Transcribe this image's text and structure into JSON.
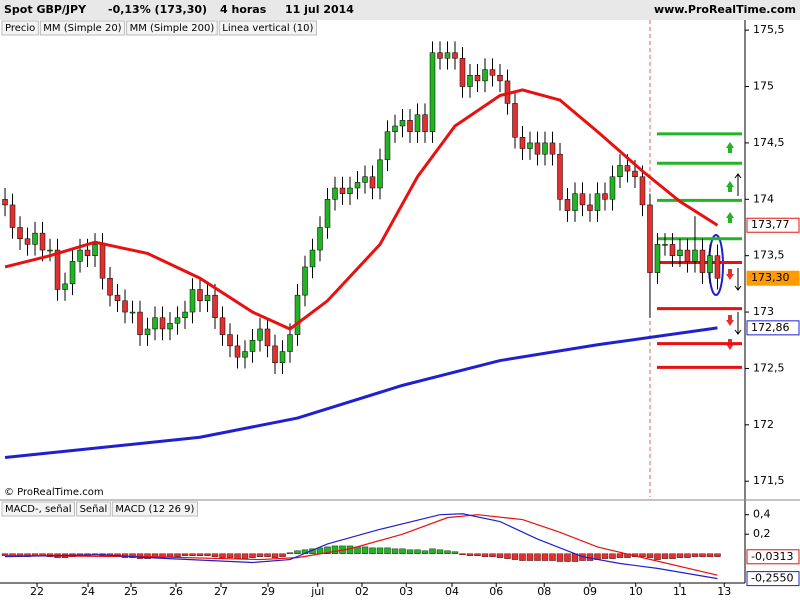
{
  "chart_data": [
    {
      "type": "candlestick",
      "title": "Spot GBP/JPY",
      "change": "-0,13% (173,30)",
      "timeframe": "4 horas",
      "date": "11 jul 2014",
      "source": "www.ProRealTime.com",
      "copyright": "© ProRealTime.com",
      "candles": {
        "name": "Precio",
        "up_color": "#22b422",
        "down_color": "#e03030",
        "open": [
          174.0,
          173.95,
          173.75,
          173.65,
          173.6,
          173.7,
          173.55,
          173.55,
          173.2,
          173.25,
          173.45,
          173.55,
          173.5,
          173.6,
          173.3,
          173.15,
          173.1,
          173.0,
          173.0,
          172.8,
          172.85,
          172.95,
          172.85,
          172.9,
          172.95,
          173.0,
          173.2,
          173.1,
          173.15,
          172.95,
          172.8,
          172.7,
          172.6,
          172.65,
          172.75,
          172.85,
          172.7,
          172.55,
          172.65,
          172.8,
          173.15,
          173.4,
          173.55,
          173.75,
          174.0,
          174.1,
          174.05,
          174.1,
          174.15,
          174.2,
          174.1,
          174.35,
          174.6,
          174.65,
          174.7,
          174.6,
          174.75,
          174.6,
          175.3,
          175.25,
          175.3,
          175.25,
          175.0,
          175.1,
          175.05,
          175.15,
          175.1,
          175.05,
          174.85,
          174.55,
          174.45,
          174.5,
          174.4,
          174.5,
          174.4,
          174.0,
          173.9,
          174.05,
          173.95,
          173.9,
          174.05,
          174.0,
          174.2,
          174.3,
          174.25,
          174.2,
          173.95,
          173.35,
          173.6,
          173.6,
          173.5,
          173.55,
          173.45,
          173.55,
          173.35,
          173.5
        ],
        "high": [
          174.1,
          174.05,
          173.85,
          173.75,
          173.8,
          173.8,
          173.65,
          173.65,
          173.35,
          173.55,
          173.65,
          173.65,
          173.7,
          173.7,
          173.4,
          173.25,
          173.2,
          173.1,
          173.1,
          172.95,
          173.05,
          173.05,
          173.0,
          173.05,
          173.1,
          173.3,
          173.3,
          173.25,
          173.25,
          173.05,
          172.9,
          172.8,
          172.75,
          172.85,
          172.95,
          172.95,
          172.8,
          172.75,
          172.9,
          173.25,
          173.5,
          173.65,
          173.85,
          174.1,
          174.2,
          174.2,
          174.2,
          174.25,
          174.3,
          174.3,
          174.45,
          174.7,
          174.75,
          174.8,
          174.8,
          174.85,
          174.85,
          175.4,
          175.4,
          175.4,
          175.4,
          175.35,
          175.2,
          175.2,
          175.25,
          175.25,
          175.2,
          175.15,
          174.95,
          174.65,
          174.6,
          174.6,
          174.6,
          174.6,
          174.5,
          174.1,
          174.15,
          174.15,
          174.05,
          174.15,
          174.15,
          174.3,
          174.4,
          174.4,
          174.35,
          174.3,
          174.05,
          173.7,
          173.7,
          173.7,
          173.65,
          173.65,
          173.85,
          173.65,
          173.6,
          173.6
        ],
        "low": [
          173.85,
          173.65,
          173.55,
          173.5,
          173.5,
          173.45,
          173.45,
          173.1,
          173.1,
          173.15,
          173.35,
          173.4,
          173.4,
          173.2,
          173.05,
          173.0,
          172.9,
          172.9,
          172.7,
          172.7,
          172.75,
          172.75,
          172.75,
          172.8,
          172.85,
          172.9,
          173.0,
          173.0,
          172.85,
          172.7,
          172.6,
          172.5,
          172.5,
          172.55,
          172.65,
          172.6,
          172.45,
          172.45,
          172.55,
          172.7,
          173.05,
          173.3,
          173.45,
          173.65,
          173.9,
          173.95,
          173.95,
          174.0,
          174.05,
          174.0,
          174.0,
          174.25,
          174.5,
          174.55,
          174.5,
          174.5,
          174.5,
          174.5,
          175.15,
          175.15,
          175.15,
          174.9,
          174.9,
          174.95,
          174.95,
          175.0,
          174.95,
          174.75,
          174.45,
          174.35,
          174.35,
          174.3,
          174.3,
          174.3,
          173.9,
          173.8,
          173.8,
          173.85,
          173.8,
          173.8,
          173.9,
          173.9,
          174.1,
          174.15,
          174.1,
          173.85,
          172.95,
          173.25,
          173.5,
          173.4,
          173.4,
          173.35,
          173.35,
          173.25,
          173.25,
          173.2
        ],
        "close": [
          173.95,
          173.75,
          173.65,
          173.6,
          173.7,
          173.55,
          173.55,
          173.2,
          173.25,
          173.45,
          173.55,
          173.5,
          173.6,
          173.3,
          173.15,
          173.1,
          173.0,
          173.0,
          172.8,
          172.85,
          172.95,
          172.85,
          172.9,
          172.95,
          173.0,
          173.2,
          173.1,
          173.15,
          172.95,
          172.8,
          172.7,
          172.6,
          172.65,
          172.75,
          172.85,
          172.7,
          172.55,
          172.65,
          172.8,
          173.15,
          173.4,
          173.55,
          173.75,
          174.0,
          174.1,
          174.05,
          174.1,
          174.15,
          174.2,
          174.1,
          174.35,
          174.6,
          174.65,
          174.7,
          174.6,
          174.75,
          174.6,
          175.3,
          175.25,
          175.3,
          175.25,
          175.0,
          175.1,
          175.05,
          175.15,
          175.1,
          175.05,
          174.85,
          174.55,
          174.45,
          174.5,
          174.4,
          174.5,
          174.4,
          174.0,
          173.9,
          174.05,
          173.95,
          173.9,
          174.05,
          174.0,
          174.2,
          174.3,
          174.25,
          174.2,
          173.95,
          173.35,
          173.6,
          173.6,
          173.5,
          173.55,
          173.45,
          173.55,
          173.35,
          173.5,
          173.3
        ]
      },
      "series": [
        {
          "name": "MM (Simple 20)",
          "color": "#e81010",
          "x": [
            0,
            6,
            12,
            19,
            26,
            33,
            38,
            43,
            50,
            55,
            60,
            66,
            69,
            74,
            79,
            85,
            90,
            95
          ],
          "values": [
            173.4,
            173.5,
            173.62,
            173.52,
            173.3,
            173.0,
            172.85,
            173.1,
            173.6,
            174.2,
            174.65,
            174.92,
            174.97,
            174.88,
            174.6,
            174.25,
            173.98,
            173.77
          ]
        },
        {
          "name": "MM (Simple 200)",
          "color": "#2020d0",
          "x": [
            0,
            26,
            39,
            53,
            66,
            79,
            95
          ],
          "values": [
            171.71,
            171.89,
            172.06,
            172.35,
            172.57,
            172.71,
            172.86
          ]
        }
      ],
      "vertical_line": {
        "name": "Linea vertical (10)",
        "x": 86,
        "color": "#e06060"
      },
      "green_levels": [
        174.58,
        174.32,
        173.99,
        173.65
      ],
      "red_levels": [
        173.44,
        173.03,
        172.72,
        172.51
      ],
      "last_labels": [
        {
          "value": 173.77,
          "label": "173,77",
          "color": "#e81010"
        },
        {
          "value": 173.3,
          "label": "173,30",
          "color": "#ff9a00"
        },
        {
          "value": 172.86,
          "label": "172,86",
          "color": "#2020d0"
        }
      ],
      "xlim": [
        -0.67,
        98.67
      ],
      "ylim": [
        171.36,
        175.59
      ],
      "yticks": [
        {
          "value": 175.5,
          "label": "175,5"
        },
        175,
        {
          "value": 174.5,
          "label": "174,5"
        },
        174,
        {
          "value": 173.5,
          "label": "173,5"
        },
        173,
        {
          "value": 172.5,
          "label": "172,5"
        },
        172,
        {
          "value": 171.5,
          "label": "171,5"
        }
      ],
      "xticks": [
        {
          "value": 4.27,
          "label": "22"
        },
        {
          "value": 11.07,
          "label": "24"
        },
        {
          "value": 16.8,
          "label": "25"
        },
        {
          "value": 22.8,
          "label": "26"
        },
        {
          "value": 28.8,
          "label": "27"
        },
        {
          "value": 35.07,
          "label": "29"
        },
        {
          "value": 41.7,
          "label": "jul"
        },
        {
          "value": 47.6,
          "label": "02"
        },
        {
          "value": 53.5,
          "label": "03"
        },
        {
          "value": 59.6,
          "label": "04"
        },
        {
          "value": 65.5,
          "label": "06"
        },
        {
          "value": 71.9,
          "label": "08"
        },
        {
          "value": 78,
          "label": "09"
        },
        {
          "value": 84.1,
          "label": "10"
        },
        {
          "value": 90,
          "label": "11"
        },
        {
          "value": 95.9,
          "label": "13"
        }
      ]
    },
    {
      "type": "bar",
      "histogram": {
        "name": "MACD-, señal",
        "pos_color": "#22b422",
        "neg_color": "#e03030",
        "values": [
          -0.02,
          -0.02,
          -0.03,
          -0.03,
          -0.02,
          -0.02,
          -0.03,
          -0.04,
          -0.04,
          -0.03,
          -0.02,
          -0.02,
          -0.01,
          -0.02,
          -0.03,
          -0.03,
          -0.04,
          -0.04,
          -0.05,
          -0.05,
          -0.04,
          -0.04,
          -0.03,
          -0.03,
          -0.02,
          -0.02,
          -0.02,
          -0.02,
          -0.03,
          -0.04,
          -0.04,
          -0.05,
          -0.05,
          -0.04,
          -0.03,
          -0.03,
          -0.04,
          -0.03,
          0.01,
          0.03,
          0.04,
          0.05,
          0.06,
          0.07,
          0.08,
          0.08,
          0.08,
          0.07,
          0.07,
          0.06,
          0.06,
          0.06,
          0.05,
          0.05,
          0.04,
          0.04,
          0.03,
          0.05,
          0.04,
          0.03,
          0.02,
          -0.01,
          -0.02,
          -0.02,
          -0.03,
          -0.03,
          -0.04,
          -0.05,
          -0.06,
          -0.07,
          -0.07,
          -0.07,
          -0.07,
          -0.07,
          -0.08,
          -0.08,
          -0.08,
          -0.07,
          -0.07,
          -0.06,
          -0.05,
          -0.05,
          -0.04,
          -0.04,
          -0.03,
          -0.03,
          -0.04,
          -0.06,
          -0.05,
          -0.05,
          -0.04,
          -0.04,
          -0.03,
          -0.03,
          -0.03,
          -0.03
        ]
      },
      "series": [
        {
          "name": "Señal",
          "color": "#e81010",
          "x": [
            0,
            19,
            34,
            39,
            46,
            53,
            59,
            63,
            69,
            74,
            79,
            85,
            95
          ],
          "values": [
            -0.02,
            -0.03,
            -0.06,
            -0.04,
            0.05,
            0.2,
            0.37,
            0.4,
            0.35,
            0.22,
            0.07,
            -0.04,
            -0.22
          ]
        },
        {
          "name": "MACD (12 26 9)",
          "color": "#2020d0",
          "x": [
            0,
            13,
            19,
            33,
            38,
            43,
            50,
            58,
            61,
            66,
            71,
            77,
            82,
            87,
            95
          ],
          "values": [
            -0.03,
            -0.01,
            -0.04,
            -0.09,
            -0.06,
            0.1,
            0.25,
            0.4,
            0.41,
            0.33,
            0.15,
            -0.03,
            -0.1,
            -0.15,
            -0.255
          ]
        }
      ],
      "last_labels": [
        {
          "value": -0.0313,
          "label": "-0,0313",
          "color": "#e81010"
        },
        {
          "value": -0.255,
          "label": "-0,2550",
          "color": "#2020d0"
        }
      ],
      "xlim": [
        -0.67,
        98.67
      ],
      "ylim": [
        -0.3,
        0.52
      ],
      "yticks": [
        {
          "value": 0.4,
          "label": "0,4"
        },
        {
          "value": 0.2,
          "label": "0,2"
        }
      ]
    }
  ]
}
